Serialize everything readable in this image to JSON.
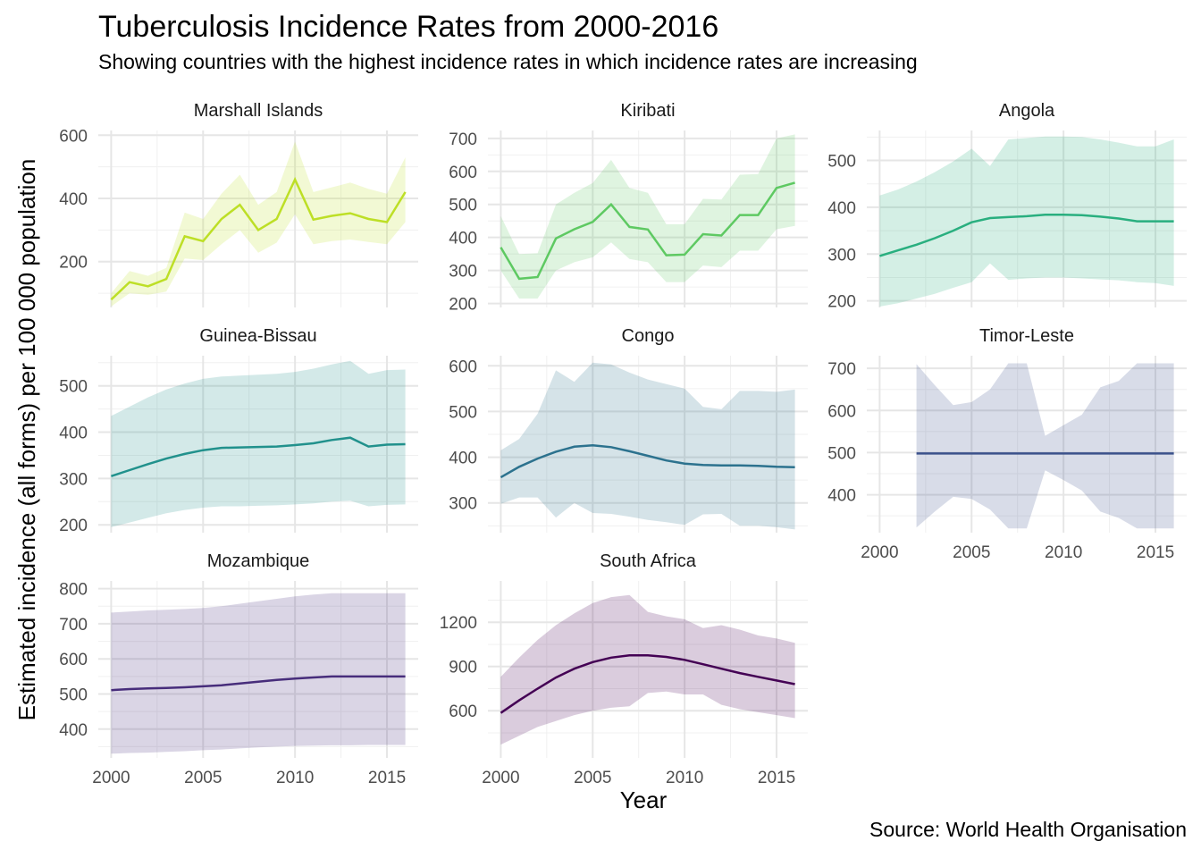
{
  "title": "Tuberculosis Incidence Rates from 2000-2016",
  "subtitle": "Showing countries with the highest incidence rates in which incidence rates are increasing",
  "caption": "Source: World Health Organisation",
  "xlabel": "Year",
  "ylabel": "Estimated incidence (all forms) per 100 000 population",
  "chart_data": {
    "type": "line",
    "title": "Tuberculosis Incidence Rates from 2000-2016",
    "subtitle": "Showing countries with the highest incidence rates in which incidence rates are increasing",
    "xlabel": "Year",
    "ylabel": "Estimated incidence (all forms) per 100 000 population",
    "x": [
      2000,
      2001,
      2002,
      2003,
      2004,
      2005,
      2006,
      2007,
      2008,
      2009,
      2010,
      2011,
      2012,
      2013,
      2014,
      2015,
      2016
    ],
    "xlim": [
      1999.3,
      2016.7
    ],
    "x_ticks": [
      2000,
      2005,
      2010,
      2015
    ],
    "grid": true,
    "series": [
      {
        "name": "Marshall Islands",
        "color": "#bddf26",
        "ylim": [
          55,
          615
        ],
        "y_ticks": [
          200,
          400,
          600
        ],
        "values": [
          80,
          135,
          122,
          145,
          280,
          265,
          335,
          380,
          300,
          335,
          460,
          333,
          345,
          353,
          335,
          325,
          420
        ],
        "lower": [
          58,
          100,
          95,
          105,
          210,
          205,
          255,
          300,
          228,
          260,
          350,
          255,
          265,
          270,
          262,
          255,
          325
        ],
        "upper": [
          100,
          170,
          155,
          180,
          355,
          335,
          415,
          475,
          380,
          420,
          580,
          420,
          435,
          450,
          430,
          415,
          530
        ]
      },
      {
        "name": "Kiribati",
        "color": "#5ec962",
        "ylim": [
          188,
          724
        ],
        "y_ticks": [
          200,
          300,
          400,
          500,
          600,
          700
        ],
        "values": [
          370,
          275,
          280,
          397,
          425,
          447,
          500,
          432,
          424,
          346,
          348,
          410,
          406,
          468,
          468,
          550,
          566
        ],
        "lower": [
          300,
          215,
          215,
          300,
          325,
          340,
          385,
          335,
          325,
          265,
          265,
          315,
          310,
          360,
          360,
          425,
          435
        ],
        "upper": [
          465,
          350,
          352,
          500,
          535,
          565,
          635,
          550,
          535,
          440,
          440,
          517,
          515,
          590,
          592,
          700,
          712
        ]
      },
      {
        "name": "Angola",
        "color": "#29af7f",
        "ylim": [
          186,
          564
        ],
        "y_ticks": [
          200,
          300,
          400,
          500
        ],
        "values": [
          296,
          308,
          320,
          334,
          350,
          368,
          377,
          379,
          381,
          384,
          384,
          383,
          380,
          376,
          370,
          370,
          370
        ],
        "lower": [
          188,
          195,
          205,
          215,
          228,
          240,
          280,
          245,
          248,
          250,
          250,
          248,
          246,
          244,
          240,
          238,
          232
        ],
        "upper": [
          425,
          438,
          455,
          475,
          498,
          525,
          488,
          545,
          548,
          551,
          551,
          550,
          545,
          538,
          530,
          530,
          545
        ]
      },
      {
        "name": "Guinea-Bissau",
        "color": "#21918c",
        "ylim": [
          183,
          565
        ],
        "y_ticks": [
          200,
          300,
          400,
          500
        ],
        "values": [
          305,
          318,
          331,
          343,
          353,
          361,
          366,
          367,
          368,
          369,
          372,
          376,
          383,
          388,
          369,
          373,
          374
        ],
        "lower": [
          195,
          205,
          215,
          225,
          232,
          237,
          240,
          240,
          241,
          242,
          244,
          246,
          250,
          252,
          240,
          243,
          244
        ],
        "upper": [
          435,
          455,
          475,
          492,
          505,
          515,
          520,
          522,
          524,
          526,
          530,
          537,
          546,
          554,
          526,
          534,
          535
        ]
      },
      {
        "name": "Congo",
        "color": "#2c728e",
        "ylim": [
          235,
          622
        ],
        "y_ticks": [
          300,
          400,
          500,
          600
        ],
        "values": [
          356,
          379,
          397,
          412,
          423,
          426,
          422,
          413,
          403,
          393,
          386,
          383,
          382,
          382,
          381,
          379,
          378
        ],
        "lower": [
          298,
          312,
          312,
          268,
          300,
          278,
          276,
          270,
          263,
          258,
          252,
          275,
          276,
          250,
          250,
          247,
          242
        ],
        "upper": [
          415,
          440,
          495,
          590,
          565,
          607,
          603,
          585,
          570,
          560,
          550,
          510,
          505,
          545,
          545,
          543,
          548
        ]
      },
      {
        "name": "Timor-Leste",
        "color": "#3b528b",
        "ylim": [
          310,
          730
        ],
        "y_ticks": [
          400,
          500,
          600,
          700
        ],
        "values": [
          null,
          null,
          498,
          498,
          498,
          498,
          498,
          498,
          498,
          498,
          498,
          498,
          498,
          498,
          498,
          498,
          498
        ],
        "lower": [
          null,
          null,
          322,
          360,
          395,
          390,
          365,
          320,
          320,
          458,
          435,
          410,
          360,
          345,
          320,
          320,
          320
        ],
        "upper": [
          null,
          null,
          710,
          660,
          613,
          620,
          650,
          712,
          712,
          540,
          565,
          590,
          655,
          670,
          712,
          712,
          712
        ]
      },
      {
        "name": "Mozambique",
        "color": "#472d7b",
        "ylim": [
          318,
          822
        ],
        "y_ticks": [
          400,
          500,
          600,
          700,
          800
        ],
        "values": [
          511,
          514,
          516,
          517,
          519,
          522,
          525,
          530,
          535,
          540,
          544,
          547,
          550,
          550,
          550,
          550,
          550
        ],
        "lower": [
          330,
          332,
          333,
          335,
          337,
          340,
          342,
          345,
          348,
          350,
          352,
          353,
          354,
          354,
          355,
          355,
          355
        ],
        "upper": [
          732,
          735,
          738,
          740,
          742,
          745,
          750,
          757,
          764,
          771,
          778,
          783,
          787,
          787,
          787,
          787,
          787
        ]
      },
      {
        "name": "South Africa",
        "color": "#440154",
        "ylim": [
          280,
          1480
        ],
        "y_ticks": [
          600,
          900,
          1200
        ],
        "values": [
          585,
          670,
          750,
          825,
          885,
          930,
          960,
          975,
          975,
          965,
          945,
          915,
          885,
          855,
          830,
          805,
          780
        ],
        "lower": [
          370,
          430,
          490,
          530,
          570,
          600,
          620,
          630,
          720,
          730,
          710,
          710,
          640,
          610,
          590,
          570,
          550
        ],
        "upper": [
          830,
          960,
          1080,
          1180,
          1260,
          1330,
          1370,
          1385,
          1270,
          1240,
          1220,
          1160,
          1180,
          1150,
          1110,
          1090,
          1060
        ]
      }
    ]
  }
}
